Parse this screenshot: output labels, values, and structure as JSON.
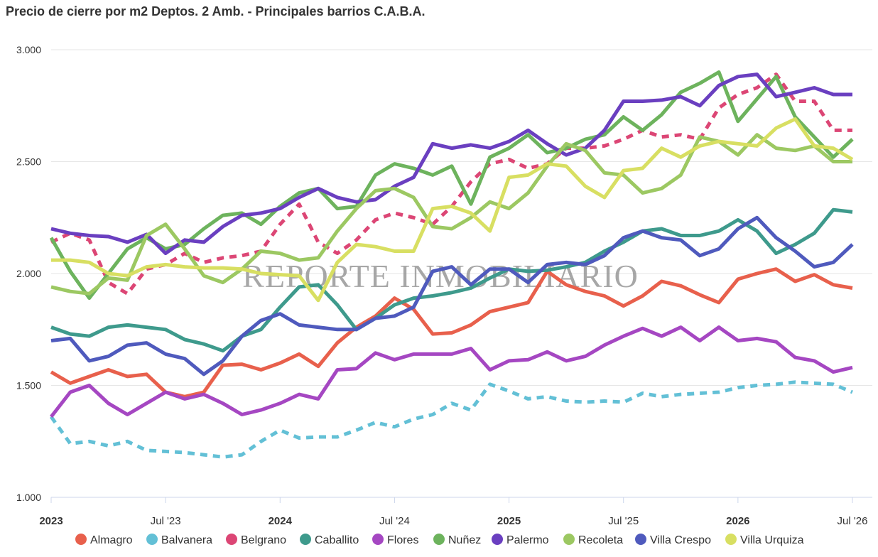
{
  "chart_data": {
    "type": "line",
    "title": "Precio de cierre por m2 Deptos. 2 Amb. - Principales barrios C.A.B.A.",
    "watermark": "REPORTE INMOBILIARIO",
    "ylim": [
      1000,
      3000
    ],
    "yticks": [
      1000,
      1500,
      2000,
      2500,
      3000
    ],
    "ytick_labels": [
      "1.000",
      "1.500",
      "2.000",
      "2.500",
      "3.000"
    ],
    "x_start": "2023-01",
    "x_end": "2026-07",
    "xticks": [
      {
        "label": "2023",
        "month": "2023-01",
        "bold": true
      },
      {
        "label": "Jul '23",
        "month": "2023-07",
        "bold": false
      },
      {
        "label": "2024",
        "month": "2024-01",
        "bold": true
      },
      {
        "label": "Jul '24",
        "month": "2024-07",
        "bold": false
      },
      {
        "label": "2025",
        "month": "2025-01",
        "bold": true
      },
      {
        "label": "Jul '25",
        "month": "2025-07",
        "bold": false
      },
      {
        "label": "2026",
        "month": "2026-01",
        "bold": true
      },
      {
        "label": "Jul '26",
        "month": "2026-07",
        "bold": false
      }
    ],
    "x": [
      "2023-01",
      "2023-02",
      "2023-03",
      "2023-04",
      "2023-05",
      "2023-06",
      "2023-07",
      "2023-08",
      "2023-09",
      "2023-10",
      "2023-11",
      "2023-12",
      "2024-01",
      "2024-02",
      "2024-03",
      "2024-04",
      "2024-05",
      "2024-06",
      "2024-07",
      "2024-08",
      "2024-09",
      "2024-10",
      "2024-11",
      "2024-12",
      "2025-01",
      "2025-02",
      "2025-03",
      "2025-04",
      "2025-05",
      "2025-06",
      "2025-07",
      "2025-08",
      "2025-09",
      "2025-10",
      "2025-11",
      "2025-12",
      "2026-01",
      "2026-02",
      "2026-03",
      "2026-04",
      "2026-05",
      "2026-06",
      "2026-07"
    ],
    "grid": true,
    "legend_position": "bottom",
    "series": [
      {
        "name": "Almagro",
        "color": "#e8604c",
        "dashed": false,
        "values": [
          1560,
          1510,
          1540,
          1570,
          1540,
          1550,
          1470,
          1450,
          1470,
          1590,
          1595,
          1570,
          1600,
          1640,
          1585,
          1690,
          1760,
          1810,
          1890,
          1840,
          1730,
          1735,
          1770,
          1830,
          1850,
          1870,
          2010,
          1950,
          1920,
          1900,
          1855,
          1900,
          1965,
          1945,
          1905,
          1870,
          1975,
          2000,
          2020,
          1965,
          1995,
          1950,
          1935
        ]
      },
      {
        "name": "Balvanera",
        "color": "#63c0d6",
        "dashed": true,
        "values": [
          1360,
          1240,
          1250,
          1230,
          1250,
          1210,
          1205,
          1200,
          1190,
          1180,
          1190,
          1250,
          1300,
          1265,
          1270,
          1270,
          1300,
          1335,
          1315,
          1350,
          1370,
          1420,
          1390,
          1505,
          1475,
          1440,
          1450,
          1430,
          1425,
          1430,
          1425,
          1465,
          1450,
          1460,
          1465,
          1470,
          1490,
          1500,
          1505,
          1515,
          1510,
          1505,
          1470
        ]
      },
      {
        "name": "Belgrano",
        "color": "#dc4675",
        "dashed": true,
        "values": [
          2140,
          2180,
          2150,
          1960,
          1910,
          2020,
          2040,
          2090,
          2050,
          2070,
          2080,
          2100,
          2220,
          2310,
          2140,
          2090,
          2150,
          2240,
          2270,
          2250,
          2220,
          2300,
          2410,
          2490,
          2510,
          2470,
          2490,
          2560,
          2560,
          2570,
          2600,
          2640,
          2610,
          2620,
          2600,
          2740,
          2800,
          2830,
          2890,
          2770,
          2770,
          2640,
          2640
        ]
      },
      {
        "name": "Caballito",
        "color": "#3e9a8c",
        "dashed": false,
        "values": [
          1760,
          1730,
          1720,
          1760,
          1770,
          1760,
          1750,
          1705,
          1685,
          1655,
          1720,
          1750,
          1850,
          1940,
          1950,
          1860,
          1750,
          1800,
          1860,
          1890,
          1900,
          1915,
          1935,
          1980,
          2020,
          2010,
          2015,
          2030,
          2050,
          2100,
          2140,
          2190,
          2200,
          2170,
          2170,
          2190,
          2240,
          2190,
          2090,
          2130,
          2180,
          2285,
          2275
        ]
      },
      {
        "name": "Flores",
        "color": "#a547c2",
        "dashed": false,
        "values": [
          1360,
          1470,
          1500,
          1420,
          1370,
          1420,
          1470,
          1440,
          1460,
          1420,
          1370,
          1390,
          1420,
          1460,
          1440,
          1570,
          1575,
          1645,
          1615,
          1640,
          1640,
          1640,
          1665,
          1570,
          1610,
          1615,
          1650,
          1610,
          1630,
          1680,
          1720,
          1755,
          1720,
          1760,
          1700,
          1760,
          1700,
          1710,
          1695,
          1625,
          1610,
          1560,
          1580
        ]
      },
      {
        "name": "Nuñez",
        "color": "#6db35d",
        "dashed": false,
        "values": [
          2160,
          2010,
          1890,
          2000,
          2110,
          2160,
          2110,
          2130,
          2200,
          2260,
          2270,
          2220,
          2300,
          2360,
          2380,
          2290,
          2300,
          2440,
          2490,
          2470,
          2440,
          2480,
          2310,
          2520,
          2560,
          2620,
          2540,
          2560,
          2600,
          2620,
          2700,
          2640,
          2710,
          2810,
          2850,
          2900,
          2680,
          2780,
          2880,
          2700,
          2610,
          2520,
          2600
        ]
      },
      {
        "name": "Palermo",
        "color": "#6a3fc0",
        "dashed": false,
        "values": [
          2200,
          2180,
          2170,
          2165,
          2140,
          2175,
          2090,
          2150,
          2140,
          2210,
          2260,
          2270,
          2290,
          2340,
          2380,
          2340,
          2320,
          2330,
          2390,
          2430,
          2580,
          2560,
          2575,
          2560,
          2590,
          2640,
          2580,
          2530,
          2560,
          2640,
          2770,
          2770,
          2775,
          2790,
          2750,
          2840,
          2880,
          2890,
          2790,
          2810,
          2830,
          2800,
          2800
        ]
      },
      {
        "name": "Recoleta",
        "color": "#9cc862",
        "dashed": false,
        "values": [
          1940,
          1920,
          1910,
          1980,
          1970,
          2170,
          2220,
          2110,
          1990,
          1960,
          2020,
          2100,
          2090,
          2060,
          2070,
          2190,
          2290,
          2370,
          2380,
          2340,
          2210,
          2200,
          2250,
          2320,
          2290,
          2360,
          2480,
          2580,
          2550,
          2450,
          2440,
          2360,
          2380,
          2440,
          2610,
          2590,
          2530,
          2620,
          2560,
          2550,
          2570,
          2500,
          2500
        ]
      },
      {
        "name": "Villa Crespo",
        "color": "#4f5abd",
        "dashed": false,
        "values": [
          1700,
          1710,
          1610,
          1630,
          1680,
          1690,
          1640,
          1620,
          1550,
          1610,
          1720,
          1790,
          1820,
          1770,
          1760,
          1750,
          1750,
          1800,
          1810,
          1850,
          2010,
          2030,
          1950,
          2020,
          2020,
          1960,
          2040,
          2050,
          2040,
          2080,
          2160,
          2190,
          2160,
          2150,
          2080,
          2110,
          2200,
          2250,
          2160,
          2100,
          2030,
          2050,
          2130
        ]
      },
      {
        "name": "Villa Urquiza",
        "color": "#d8df62",
        "dashed": false,
        "values": [
          2060,
          2060,
          2050,
          2000,
          1990,
          2030,
          2040,
          2030,
          2025,
          2025,
          2020,
          2000,
          1995,
          1990,
          1880,
          2050,
          2130,
          2120,
          2100,
          2100,
          2290,
          2300,
          2270,
          2190,
          2430,
          2440,
          2490,
          2480,
          2390,
          2340,
          2460,
          2470,
          2560,
          2520,
          2570,
          2590,
          2580,
          2570,
          2650,
          2690,
          2570,
          2560,
          2510
        ]
      }
    ]
  }
}
